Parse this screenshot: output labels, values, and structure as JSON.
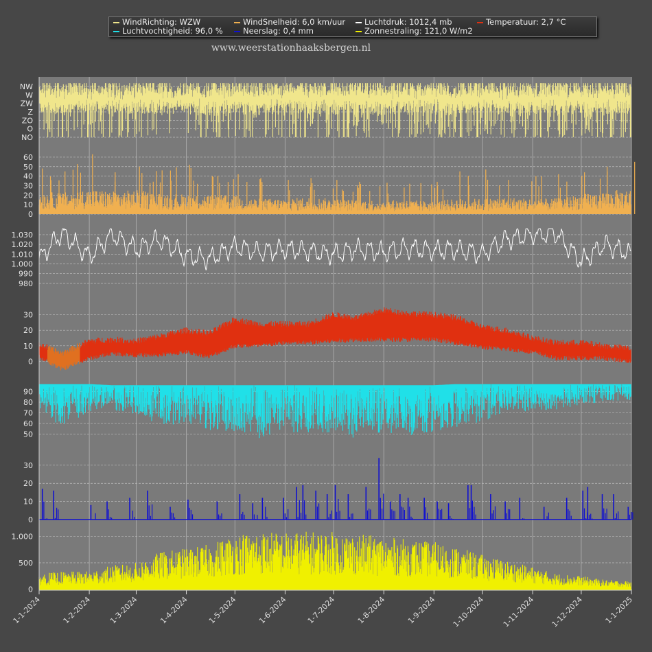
{
  "legend": {
    "items": [
      {
        "label": "WindRichting: WZW",
        "color": "#f0e68c"
      },
      {
        "label": "WindSnelheid: 6,0 km/uur",
        "color": "#f0b050"
      },
      {
        "label": "Luchtdruk: 1012,4 mb",
        "color": "#ffffff"
      },
      {
        "label": "Temperatuur: 2,7 °C",
        "color": "#e03010"
      },
      {
        "label": "Luchtvochtigheid: 96,0 %",
        "color": "#20e0e8"
      },
      {
        "label": "Neerslag: 0,4 mm",
        "color": "#1010d0"
      },
      {
        "label": "Zonnestraling: 121,0 W/m2",
        "color": "#f0f000"
      }
    ]
  },
  "website": "www.weerstationhaaksbergen.nl",
  "colors": {
    "background": "#474747",
    "plot_background": "#7a7a7a",
    "grid": "#a8a8a8",
    "temperature_cold": "#e07020"
  },
  "chart_data": [
    {
      "type": "bar",
      "name": "WindRichting",
      "yticks": [
        "NO",
        "O",
        "ZO",
        "Z",
        "ZW",
        "W",
        "NW"
      ],
      "x_range": [
        "1-1-2024",
        "1-1-2025"
      ],
      "dominant_values": [
        "ZW",
        "W"
      ],
      "color": "#f0e68c"
    },
    {
      "type": "area",
      "name": "WindSnelheid",
      "ylim": [
        0,
        65
      ],
      "yticks": [
        0,
        10,
        20,
        30,
        40,
        50,
        60
      ],
      "x": [
        "1-1-2024",
        "15-1-2024",
        "1-2-2024",
        "15-2-2024",
        "1-3-2024",
        "15-3-2024",
        "1-4-2024",
        "15-4-2024",
        "1-5-2024",
        "15-5-2024",
        "1-6-2024",
        "15-6-2024",
        "1-7-2024",
        "15-7-2024",
        "1-8-2024",
        "15-8-2024",
        "1-9-2024",
        "15-9-2024",
        "1-10-2024",
        "15-10-2024",
        "1-11-2024",
        "15-11-2024",
        "1-12-2024",
        "15-12-2024",
        "1-1-2025"
      ],
      "typical": [
        16,
        15,
        18,
        16,
        17,
        15,
        14,
        14,
        13,
        11,
        11,
        12,
        11,
        10,
        10,
        10,
        9,
        11,
        11,
        12,
        11,
        11,
        14,
        16,
        18
      ],
      "peaks": [
        48,
        45,
        63,
        44,
        50,
        46,
        52,
        40,
        42,
        38,
        36,
        38,
        36,
        34,
        33,
        32,
        34,
        45,
        47,
        36,
        40,
        42,
        44,
        50,
        55
      ],
      "color": "#f0b050"
    },
    {
      "type": "line",
      "name": "Luchtdruk",
      "ylim": [
        975,
        1037
      ],
      "yticks": [
        980,
        990,
        1000,
        1010,
        1020,
        1030
      ],
      "ytick_labels": [
        "980",
        "990",
        "1.000",
        "1.010",
        "1.020",
        "1.030"
      ],
      "x": [
        "1-1-2024",
        "15-1-2024",
        "1-2-2024",
        "15-2-2024",
        "1-3-2024",
        "15-3-2024",
        "1-4-2024",
        "15-4-2024",
        "1-5-2024",
        "15-5-2024",
        "1-6-2024",
        "15-6-2024",
        "1-7-2024",
        "15-7-2024",
        "1-8-2024",
        "15-8-2024",
        "1-9-2024",
        "15-9-2024",
        "1-10-2024",
        "15-10-2024",
        "1-11-2024",
        "15-11-2024",
        "1-12-2024",
        "15-12-2024",
        "1-1-2025"
      ],
      "values": [
        1005,
        1032,
        1008,
        1030,
        1015,
        1025,
        1008,
        1005,
        1018,
        1012,
        1015,
        1013,
        1010,
        1015,
        1012,
        1016,
        1014,
        1015,
        1010,
        1025,
        1030,
        1032,
        1002,
        1020,
        1010
      ],
      "color": "#ffffff"
    },
    {
      "type": "line",
      "name": "Temperatuur",
      "ylim": [
        -6,
        36
      ],
      "yticks": [
        0,
        10,
        20,
        30
      ],
      "x": [
        "1-1-2024",
        "15-1-2024",
        "1-2-2024",
        "15-2-2024",
        "1-3-2024",
        "15-3-2024",
        "1-4-2024",
        "15-4-2024",
        "1-5-2024",
        "15-5-2024",
        "1-6-2024",
        "15-6-2024",
        "1-7-2024",
        "15-7-2024",
        "1-8-2024",
        "15-8-2024",
        "1-9-2024",
        "15-9-2024",
        "1-10-2024",
        "15-10-2024",
        "1-11-2024",
        "15-11-2024",
        "1-12-2024",
        "15-12-2024",
        "1-1-2025"
      ],
      "min": [
        3,
        -5,
        2,
        5,
        4,
        4,
        6,
        3,
        10,
        10,
        12,
        12,
        13,
        14,
        14,
        14,
        14,
        12,
        9,
        8,
        6,
        2,
        2,
        2,
        0
      ],
      "max": [
        11,
        5,
        13,
        14,
        13,
        16,
        20,
        18,
        27,
        24,
        24,
        24,
        30,
        28,
        33,
        31,
        30,
        28,
        22,
        20,
        15,
        12,
        12,
        10,
        8
      ],
      "color": "#e03010"
    },
    {
      "type": "line",
      "name": "Luchtvochtigheid",
      "ylim": [
        42,
        100
      ],
      "yticks": [
        50,
        60,
        70,
        80,
        90
      ],
      "x": [
        "1-1-2024",
        "15-1-2024",
        "1-2-2024",
        "15-2-2024",
        "1-3-2024",
        "15-3-2024",
        "1-4-2024",
        "15-4-2024",
        "1-5-2024",
        "15-5-2024",
        "1-6-2024",
        "15-6-2024",
        "1-7-2024",
        "15-7-2024",
        "1-8-2024",
        "15-8-2024",
        "1-9-2024",
        "15-9-2024",
        "1-10-2024",
        "15-10-2024",
        "1-11-2024",
        "15-11-2024",
        "1-12-2024",
        "15-12-2024",
        "1-1-2025"
      ],
      "min": [
        75,
        55,
        70,
        72,
        68,
        58,
        60,
        52,
        48,
        45,
        52,
        50,
        52,
        45,
        50,
        48,
        52,
        55,
        62,
        70,
        72,
        72,
        78,
        80,
        82
      ],
      "max": [
        97,
        97,
        97,
        96,
        96,
        96,
        96,
        96,
        96,
        96,
        96,
        96,
        96,
        96,
        96,
        96,
        96,
        97,
        97,
        97,
        97,
        97,
        97,
        97,
        97
      ],
      "color": "#20e0e8"
    },
    {
      "type": "bar",
      "name": "Neerslag",
      "ylim": [
        0,
        36
      ],
      "yticks": [
        0,
        10,
        20,
        30
      ],
      "events": [
        {
          "x": "3-1-2024",
          "value": 17
        },
        {
          "x": "10-1-2024",
          "value": 16
        },
        {
          "x": "2-2-2024",
          "value": 8
        },
        {
          "x": "12-2-2024",
          "value": 10
        },
        {
          "x": "26-2-2024",
          "value": 12
        },
        {
          "x": "8-3-2024",
          "value": 16
        },
        {
          "x": "22-3-2024",
          "value": 7
        },
        {
          "x": "2-4-2024",
          "value": 11
        },
        {
          "x": "20-4-2024",
          "value": 10
        },
        {
          "x": "4-5-2024",
          "value": 14
        },
        {
          "x": "12-5-2024",
          "value": 9
        },
        {
          "x": "18-5-2024",
          "value": 12
        },
        {
          "x": "31-5-2024",
          "value": 12
        },
        {
          "x": "8-6-2024",
          "value": 18
        },
        {
          "x": "12-6-2024",
          "value": 19
        },
        {
          "x": "20-6-2024",
          "value": 16
        },
        {
          "x": "27-6-2024",
          "value": 14
        },
        {
          "x": "2-7-2024",
          "value": 19
        },
        {
          "x": "10-7-2024",
          "value": 14
        },
        {
          "x": "21-7-2024",
          "value": 18
        },
        {
          "x": "29-7-2024",
          "value": 34
        },
        {
          "x": "5-8-2024",
          "value": 10
        },
        {
          "x": "11-8-2024",
          "value": 14
        },
        {
          "x": "16-8-2024",
          "value": 12
        },
        {
          "x": "26-8-2024",
          "value": 12
        },
        {
          "x": "3-9-2024",
          "value": 10
        },
        {
          "x": "10-9-2024",
          "value": 9
        },
        {
          "x": "22-9-2024",
          "value": 19
        },
        {
          "x": "24-9-2024",
          "value": 19
        },
        {
          "x": "6-10-2024",
          "value": 14
        },
        {
          "x": "15-10-2024",
          "value": 10
        },
        {
          "x": "24-10-2024",
          "value": 12
        },
        {
          "x": "8-11-2024",
          "value": 7
        },
        {
          "x": "22-11-2024",
          "value": 12
        },
        {
          "x": "2-12-2024",
          "value": 16
        },
        {
          "x": "5-12-2024",
          "value": 18
        },
        {
          "x": "14-12-2024",
          "value": 14
        },
        {
          "x": "21-12-2024",
          "value": 14
        },
        {
          "x": "30-12-2024",
          "value": 7
        }
      ],
      "color": "#1010d0"
    },
    {
      "type": "bar",
      "name": "Zonnestraling",
      "ylim": [
        -20,
        1150
      ],
      "yticks": [
        0,
        500,
        1000
      ],
      "ytick_labels": [
        "0",
        "500",
        "1.000"
      ],
      "x": [
        "1-1-2024",
        "15-1-2024",
        "1-2-2024",
        "15-2-2024",
        "1-3-2024",
        "15-3-2024",
        "1-4-2024",
        "15-4-2024",
        "1-5-2024",
        "15-5-2024",
        "1-6-2024",
        "15-6-2024",
        "1-7-2024",
        "15-7-2024",
        "1-8-2024",
        "15-8-2024",
        "1-9-2024",
        "15-9-2024",
        "1-10-2024",
        "15-10-2024",
        "1-11-2024",
        "15-11-2024",
        "1-12-2024",
        "15-12-2024",
        "1-1-2025"
      ],
      "daily_max": [
        300,
        330,
        340,
        450,
        500,
        700,
        780,
        850,
        1050,
        1100,
        1080,
        1100,
        1090,
        1050,
        1000,
        950,
        900,
        800,
        650,
        550,
        420,
        300,
        250,
        180,
        150
      ],
      "color": "#f0f000"
    }
  ],
  "x_axis": {
    "ticks": [
      "1-1-2024",
      "1-2-2024",
      "1-3-2024",
      "1-4-2024",
      "1-5-2024",
      "1-6-2024",
      "1-7-2024",
      "1-8-2024",
      "1-9-2024",
      "1-10-2024",
      "1-11-2024",
      "1-12-2024",
      "1-1-2025"
    ]
  }
}
